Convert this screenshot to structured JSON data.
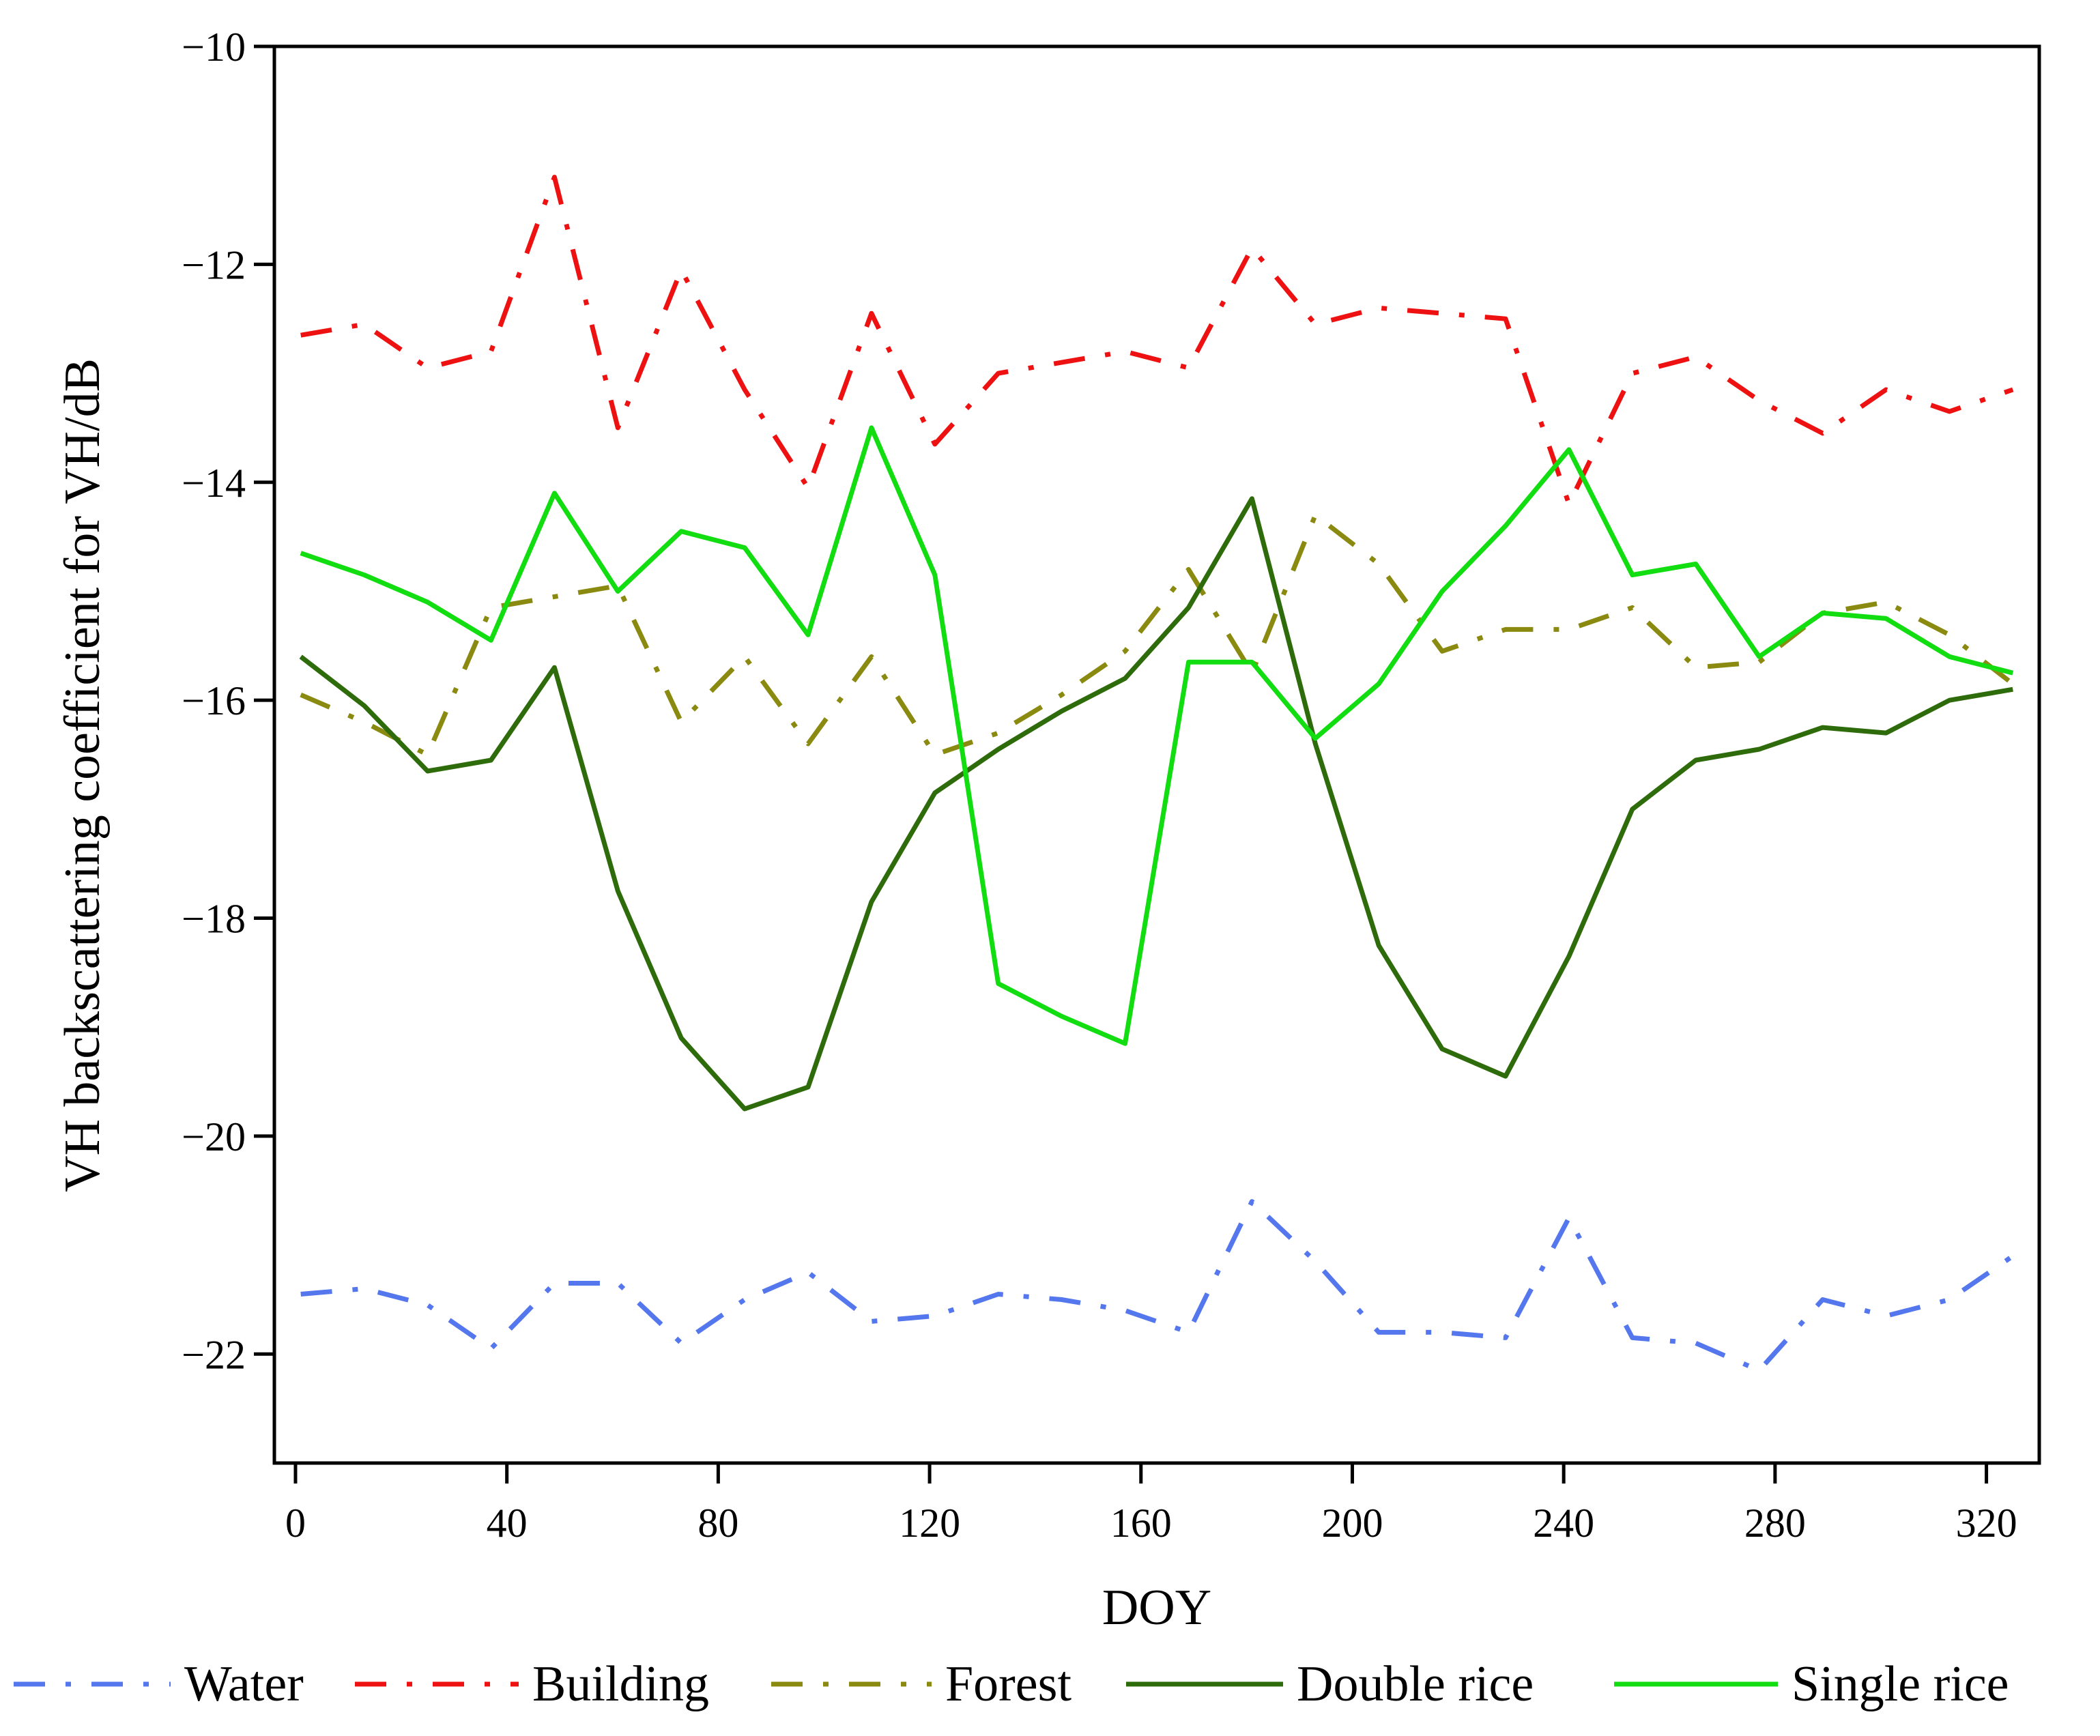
{
  "chart_data": {
    "type": "line",
    "title": "",
    "xlabel": "DOY",
    "ylabel": "VH backscattering coefficient for VH/dB",
    "xlim": [
      -4,
      330
    ],
    "ylim": [
      -23,
      -10
    ],
    "xticks": [
      0,
      40,
      80,
      120,
      160,
      200,
      240,
      280,
      320
    ],
    "xtick_labels": [
      "0",
      "40",
      "80",
      "120",
      "160",
      "200",
      "240",
      "280",
      "320"
    ],
    "yticks": [
      -10,
      -12,
      -14,
      -16,
      -18,
      -20,
      -22
    ],
    "ytick_labels": [
      "−10",
      "−12",
      "−14",
      "−16",
      "−18",
      "−20",
      "−22"
    ],
    "grid": false,
    "legend_position": "bottom",
    "x": [
      1,
      13,
      25,
      37,
      49,
      61,
      73,
      85,
      97,
      109,
      121,
      133,
      145,
      157,
      169,
      181,
      193,
      205,
      217,
      229,
      241,
      253,
      265,
      277,
      289,
      301,
      313,
      325
    ],
    "series": [
      {
        "name": "Water",
        "color": "#5577ee",
        "style": "dash-dot",
        "values": [
          -21.45,
          -21.4,
          -21.55,
          -21.95,
          -21.35,
          -21.35,
          -21.9,
          -21.5,
          -21.25,
          -21.7,
          -21.65,
          -21.45,
          -21.5,
          -21.6,
          -21.8,
          -20.6,
          -21.15,
          -21.8,
          -21.8,
          -21.85,
          -20.75,
          -21.85,
          -21.9,
          -22.15,
          -21.5,
          -21.65,
          -21.5,
          -21.1
        ]
      },
      {
        "name": "Building",
        "color": "#ee1111",
        "style": "dash-dot",
        "values": [
          -12.65,
          -12.55,
          -12.95,
          -12.8,
          -11.2,
          -13.5,
          -12.05,
          -13.15,
          -14.05,
          -12.45,
          -13.65,
          -13.0,
          -12.9,
          -12.8,
          -12.95,
          -11.85,
          -12.55,
          -12.4,
          -12.45,
          -12.5,
          -14.2,
          -13.0,
          -12.85,
          -13.25,
          -13.55,
          -13.15,
          -13.35,
          -13.15
        ]
      },
      {
        "name": "Forest",
        "color": "#8a8a10",
        "style": "dash-dot",
        "values": [
          -15.95,
          -16.2,
          -16.5,
          -15.15,
          -15.05,
          -14.95,
          -16.2,
          -15.6,
          -16.4,
          -15.6,
          -16.5,
          -16.3,
          -15.95,
          -15.55,
          -14.8,
          -15.75,
          -14.3,
          -14.75,
          -15.55,
          -15.35,
          -15.35,
          -15.15,
          -15.7,
          -15.65,
          -15.2,
          -15.1,
          -15.4,
          -15.85
        ]
      },
      {
        "name": "Double rice",
        "color": "#2e6b0a",
        "style": "solid",
        "values": [
          -15.6,
          -16.05,
          -16.65,
          -16.55,
          -15.7,
          -17.75,
          -19.1,
          -19.75,
          -19.55,
          -17.85,
          -16.85,
          -16.45,
          -16.1,
          -15.8,
          -15.15,
          -14.15,
          -16.4,
          -18.25,
          -19.2,
          -19.45,
          -18.35,
          -17.0,
          -16.55,
          -16.45,
          -16.25,
          -16.3,
          -16.0,
          -15.9
        ]
      },
      {
        "name": "Single rice",
        "color": "#11dd11",
        "style": "solid",
        "values": [
          -14.65,
          -14.85,
          -15.1,
          -15.45,
          -14.1,
          -15.0,
          -14.45,
          -14.6,
          -15.4,
          -13.5,
          -14.85,
          -18.6,
          -18.9,
          -19.15,
          -15.65,
          -15.65,
          -16.35,
          -15.85,
          -15.0,
          -14.4,
          -13.7,
          -14.85,
          -14.75,
          -15.6,
          -15.2,
          -15.25,
          -15.6,
          -15.75
        ]
      }
    ]
  }
}
